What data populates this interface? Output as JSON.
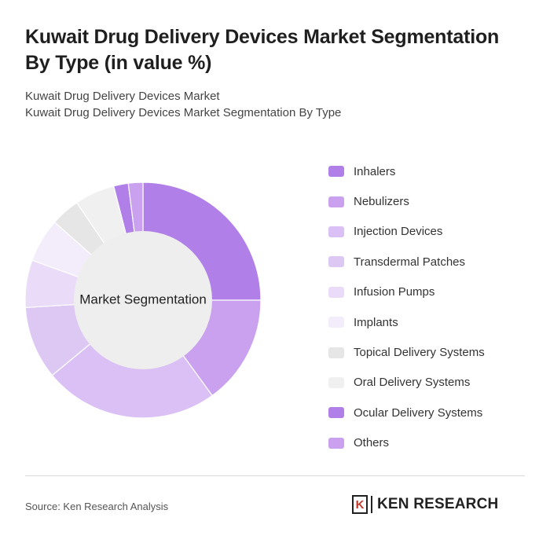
{
  "title": "Kuwait Drug Delivery Devices Market Segmentation By Type (in value %)",
  "subtitle_line1": "Kuwait Drug Delivery Devices Market",
  "subtitle_line2": "Kuwait Drug Delivery Devices Market Segmentation By Type",
  "source": "Source: Ken Research Analysis",
  "brand": "KEN RESEARCH",
  "brand_initial": "K",
  "chart_data": {
    "type": "pie",
    "variant": "donut",
    "center_label": "Market Segmentation",
    "legend_placement": "right",
    "categories": [
      "Inhalers",
      "Nebulizers",
      "Injection Devices",
      "Transdermal Patches",
      "Infusion Pumps",
      "Implants",
      "Topical Delivery Systems",
      "Oral Delivery Systems",
      "Ocular Delivery Systems",
      "Others"
    ],
    "values": [
      25,
      15,
      24,
      10,
      6.5,
      6,
      4,
      5.5,
      2,
      2
    ],
    "colors": [
      "#b17fe8",
      "#c9a1ef",
      "#dac0f5",
      "#dcc8f3",
      "#eadcf9",
      "#f3edfb",
      "#e6e6e6",
      "#f0f0f0",
      "#b17fe8",
      "#c9a1ef"
    ]
  }
}
